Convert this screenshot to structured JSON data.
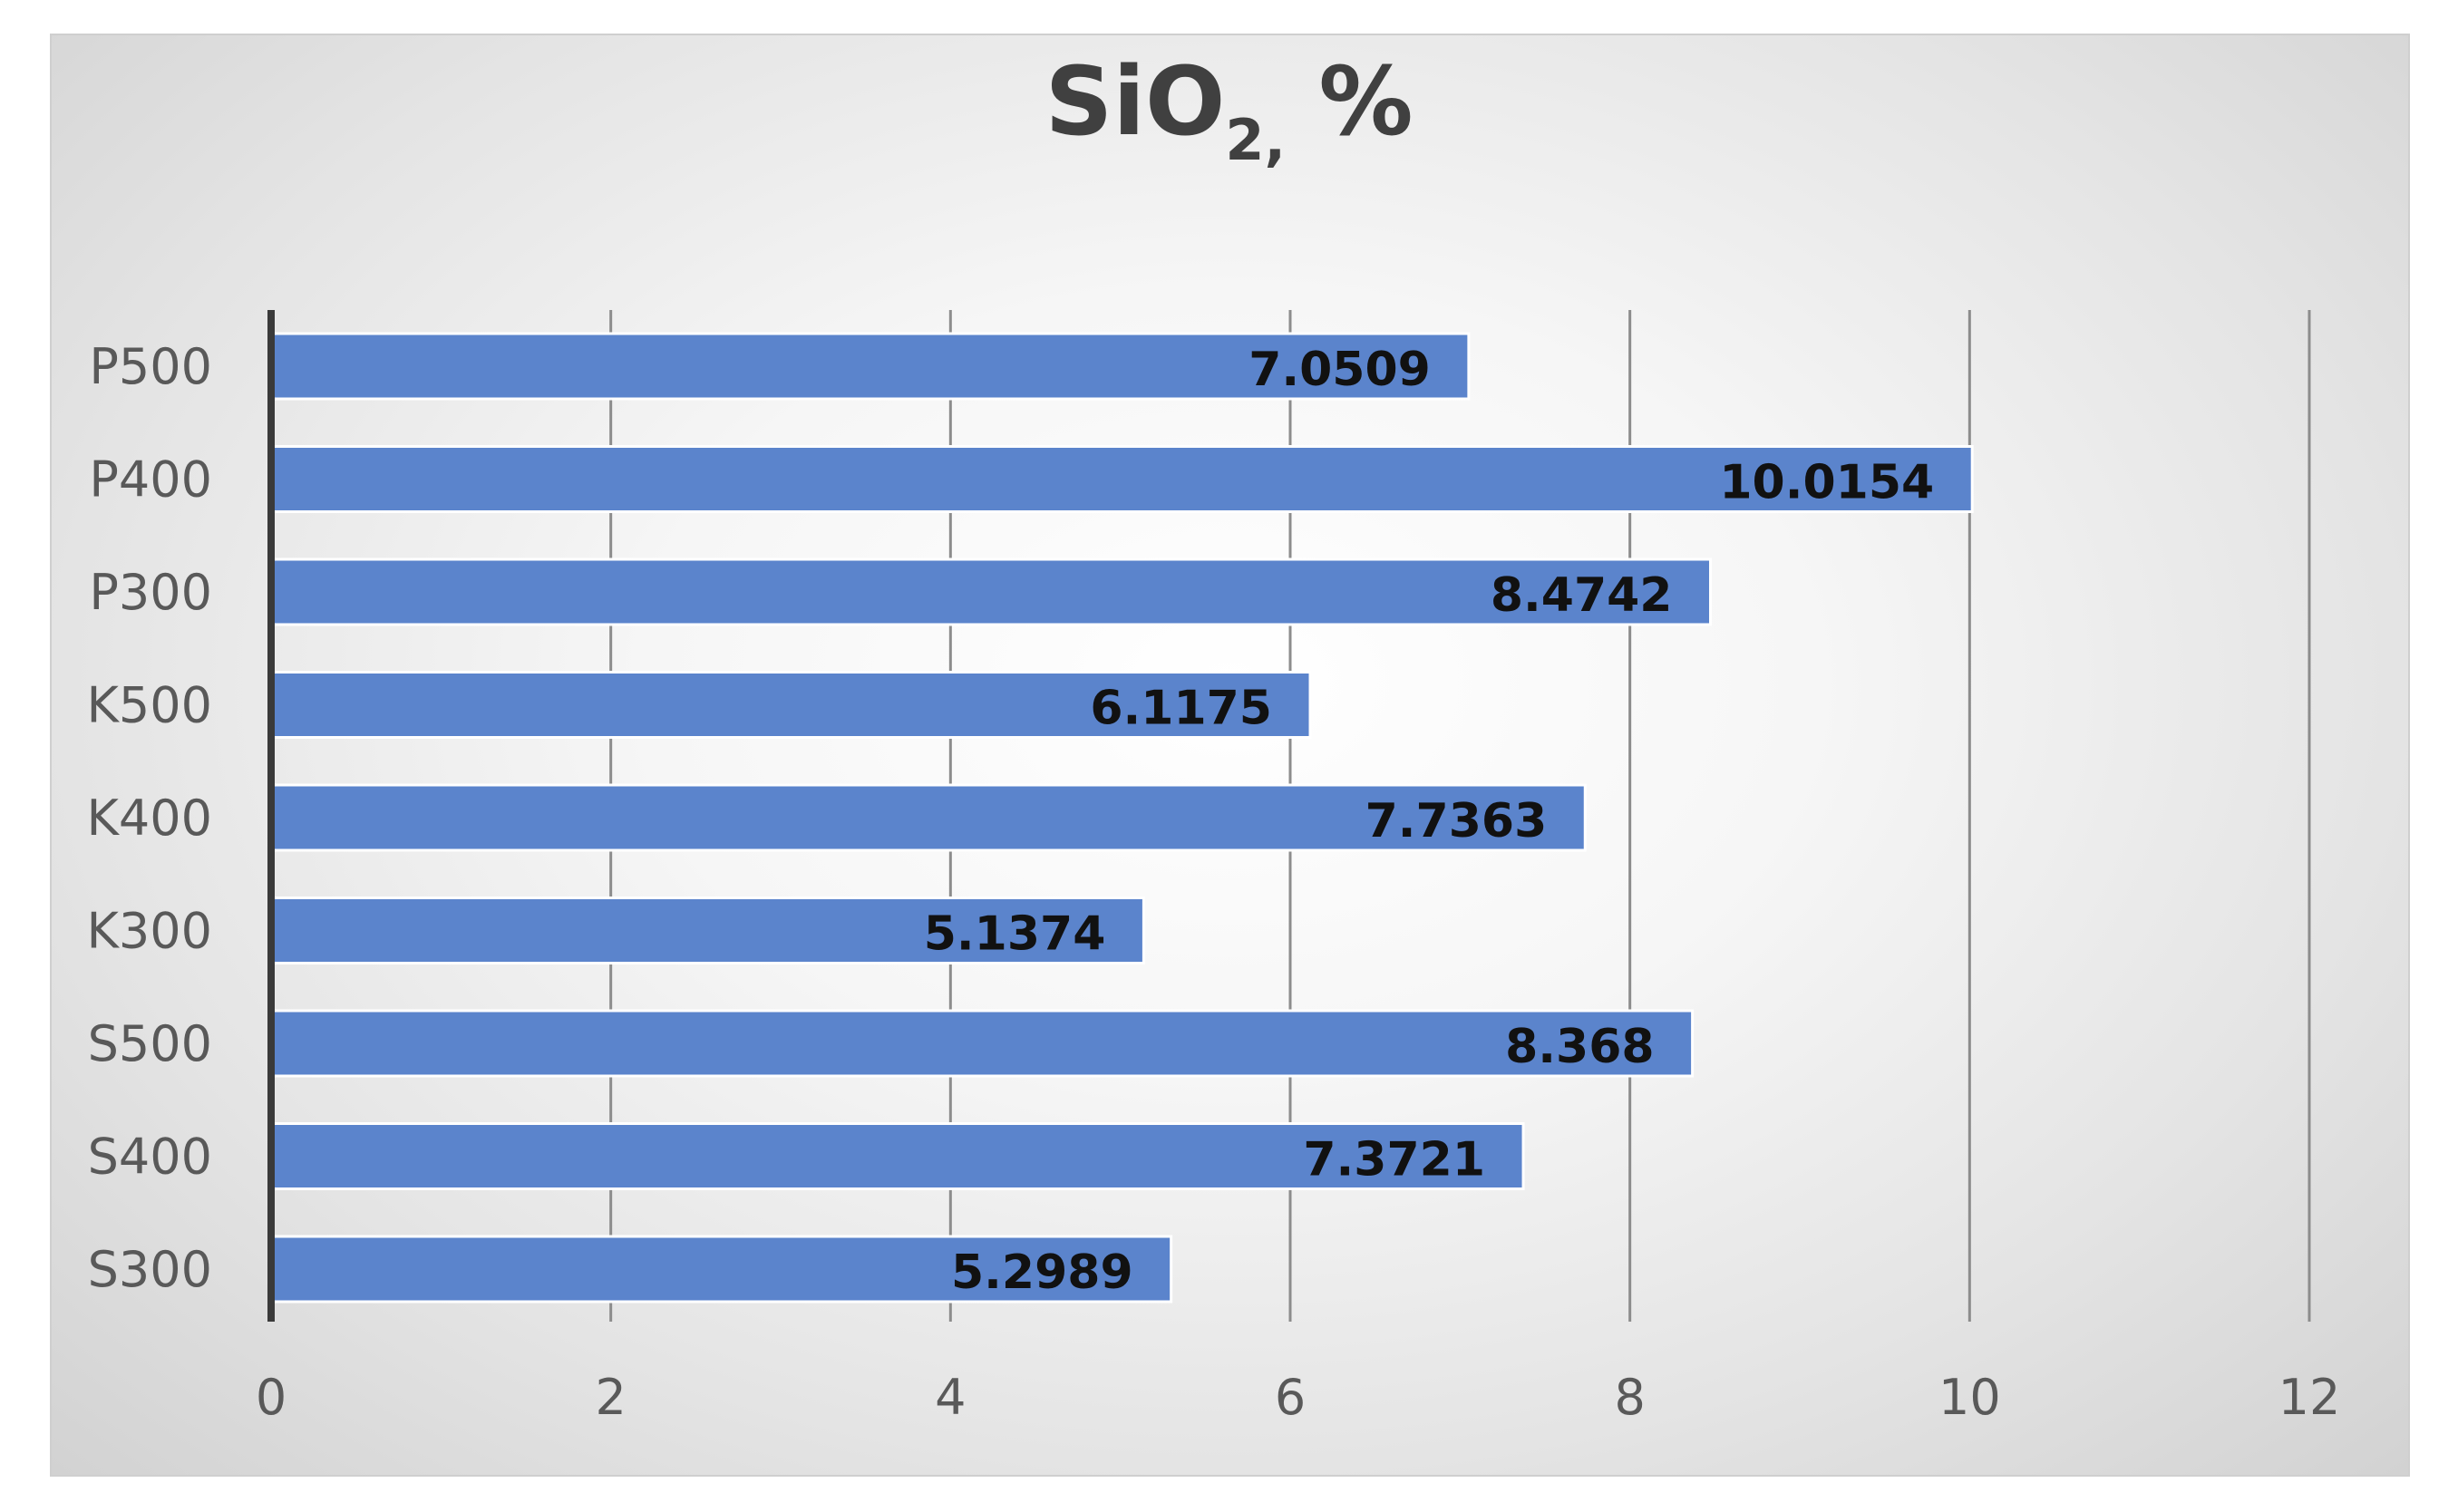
{
  "chart_data": {
    "type": "bar",
    "orientation": "horizontal",
    "title": {
      "main": "SiO",
      "subscript": "2,",
      "suffix": " %"
    },
    "categories": [
      "P500",
      "P400",
      "P300",
      "K500",
      "K400",
      "K300",
      "S500",
      "S400",
      "S300"
    ],
    "values": [
      7.0509,
      10.0154,
      8.4742,
      6.1175,
      7.7363,
      5.1374,
      8.368,
      7.3721,
      5.2989
    ],
    "value_labels": [
      "7.0509",
      "10.0154",
      "8.4742",
      "6.1175",
      "7.7363",
      "5.1374",
      "8.368",
      "7.3721",
      "5.2989"
    ],
    "xlim": [
      0,
      12
    ],
    "xticks": [
      0,
      2,
      4,
      6,
      8,
      10,
      12
    ],
    "xlabel": "",
    "ylabel": "",
    "grid": "vertical",
    "legend": "none",
    "colors": {
      "bar": "#5b84cc",
      "bar_edge": "#ffffff",
      "grid": "#8c8c8c",
      "axis": "#3a3a3a"
    }
  }
}
